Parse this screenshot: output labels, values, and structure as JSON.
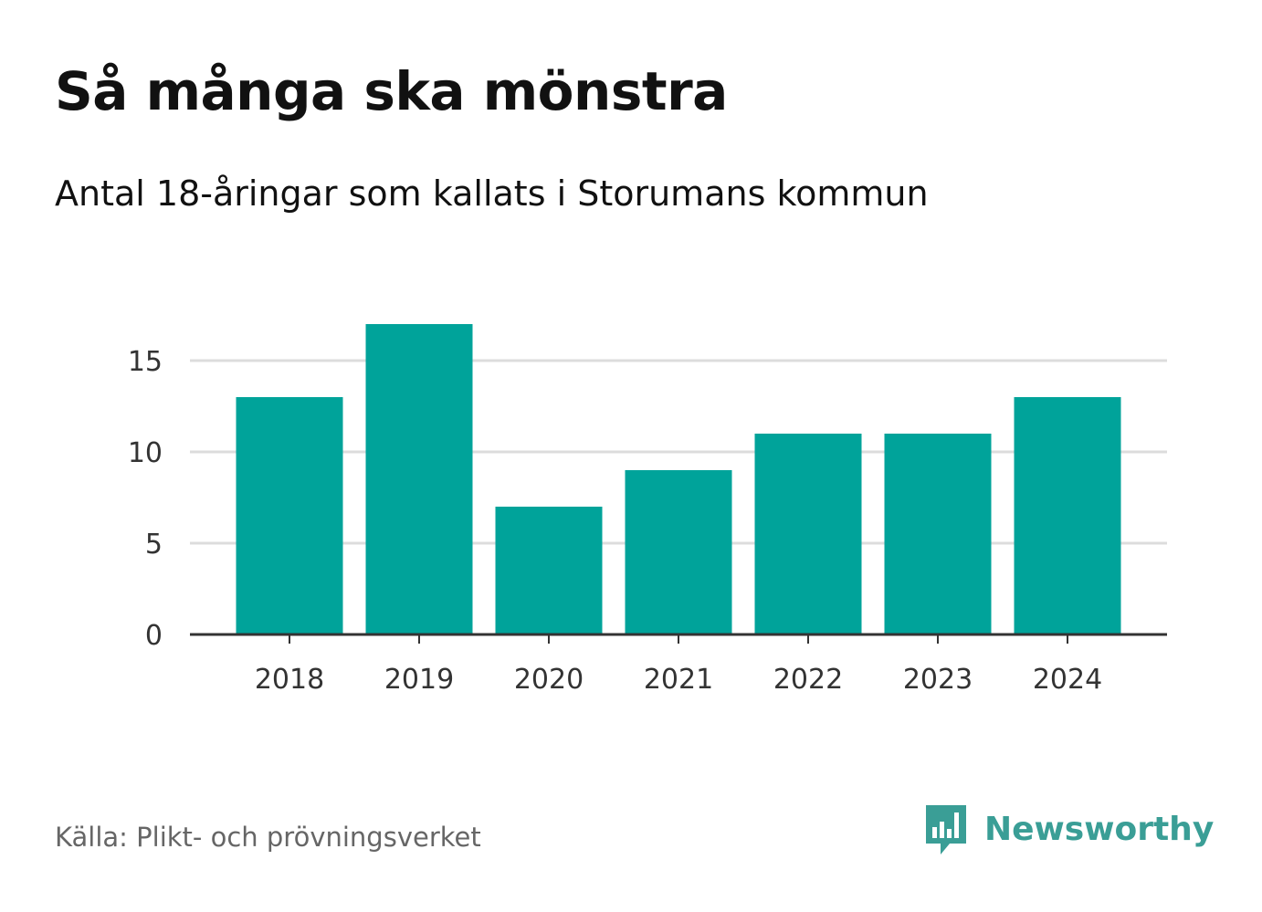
{
  "title": "Så många ska mönstra",
  "subtitle": "Antal 18-åringar som kallats i Storumans kommun",
  "source": "Källa: Plikt- och prövningsverket",
  "brand": "Newsworthy",
  "colors": {
    "bar": "#00a39a",
    "grid": "#dcdcdc",
    "axis": "#333333",
    "brand": "#3a9e96"
  },
  "chart_data": {
    "type": "bar",
    "title": "Så många ska mönstra",
    "subtitle": "Antal 18-åringar som kallats i Storumans kommun",
    "xlabel": "",
    "ylabel": "",
    "categories": [
      "2018",
      "2019",
      "2020",
      "2021",
      "2022",
      "2023",
      "2024"
    ],
    "values": [
      13,
      17,
      7,
      9,
      11,
      11,
      13
    ],
    "ylim": [
      0,
      17
    ],
    "yticks": [
      0,
      5,
      10,
      15
    ],
    "grid": true,
    "legend": "none"
  }
}
